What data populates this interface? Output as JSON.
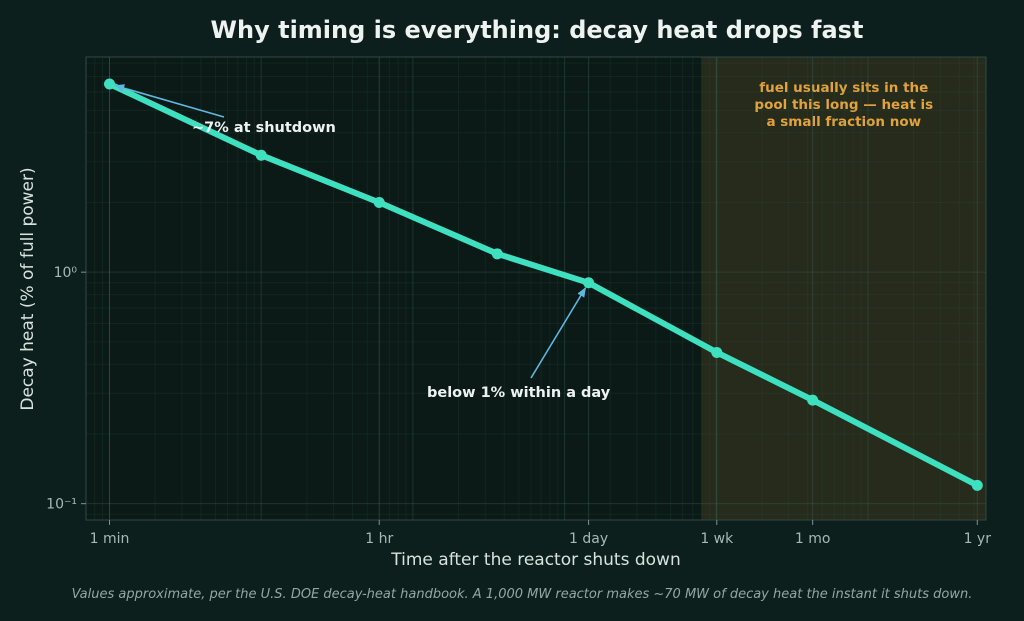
{
  "chart_data": {
    "type": "line",
    "title": "Why timing is everything: decay heat drops fast",
    "xlabel": "Time after the reactor shuts down",
    "ylabel": "Decay heat  (% of full power)",
    "x_scale": "log",
    "y_scale": "log",
    "x_unit": "minutes",
    "x_ticks": [
      {
        "value": 1,
        "label": "1 min"
      },
      {
        "value": 60,
        "label": "1 hr"
      },
      {
        "value": 1440,
        "label": "1 day"
      },
      {
        "value": 10080,
        "label": "1 wk"
      },
      {
        "value": 43200,
        "label": "1 mo"
      },
      {
        "value": 525600,
        "label": "1 yr"
      }
    ],
    "y_ticks": [
      {
        "value": 1,
        "label": "10⁰"
      },
      {
        "value": 0.1,
        "label": "10⁻¹"
      }
    ],
    "xlim": [
      0.7,
      600000
    ],
    "ylim": [
      0.085,
      8.5
    ],
    "grid": true,
    "series": [
      {
        "color": "#3ee0bf",
        "points": [
          {
            "x": 1,
            "y": 6.5
          },
          {
            "x": 10,
            "y": 3.2
          },
          {
            "x": 60,
            "y": 2.0
          },
          {
            "x": 360,
            "y": 1.2
          },
          {
            "x": 1440,
            "y": 0.9
          },
          {
            "x": 10080,
            "y": 0.45
          },
          {
            "x": 43200,
            "y": 0.28
          },
          {
            "x": 525600,
            "y": 0.12
          }
        ]
      }
    ],
    "shaded_region": {
      "x_from": 8000,
      "x_to": 600000,
      "text_lines": [
        "fuel usually sits in the",
        "pool this long — heat is",
        "a small fraction now"
      ],
      "color": "#e2a33c"
    },
    "annotations": [
      {
        "text": "~7% at shutdown",
        "point": {
          "x": 1,
          "y": 6.5
        }
      },
      {
        "text": "below 1% within a day",
        "point": {
          "x": 1440,
          "y": 0.9
        }
      }
    ],
    "footnote": "Values approximate, per the U.S. DOE decay-heat handbook. A 1,000 MW reactor makes ~70 MW of decay heat the instant it shuts down."
  }
}
